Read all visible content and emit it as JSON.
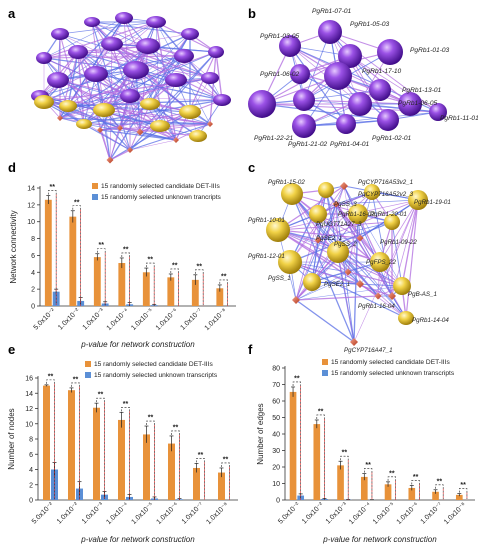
{
  "colors": {
    "orange": "#e8923a",
    "blue": "#5b8fd6",
    "purple": "#7b2fd0",
    "purple_dark": "#4a1298",
    "yellow": "#e6c532",
    "red_diamond": "#d8674c",
    "edge_blue": "#5a6fe6",
    "edge_violet": "#b06ae0",
    "sig_red": "#e02020"
  },
  "panels": {
    "a": {
      "letter": "a"
    },
    "b": {
      "letter": "b",
      "node_labels": [
        "PgRb1-07-01",
        "PgRb1-03-05",
        "PgRb1-05-03",
        "PgRb1-01-03",
        "PgRb1-06-02",
        "PgRb1-17-10",
        "PgRb1-13-01",
        "PgRb1-06-05",
        "PgRb1-11-01",
        "PgRb1-22-21",
        "PgRb1-02-01",
        "PgRb1-21-02",
        "PgRb1-04-01"
      ]
    },
    "c": {
      "letter": "c",
      "node_labels": [
        "PgCYP716A53v2_1",
        "PgRb1-15-02",
        "PgCYP716A52v2_3",
        "PgSS_3",
        "PgRb1-20-01",
        "PgRb1-16-02",
        "PgRb1-19-01",
        "PgRb1-10-01",
        "PgUGT71A27_3",
        "PgSE2_1",
        "PgRb1-09-22",
        "PgRb1-12-01",
        "PgSS_2",
        "PgFPS_22",
        "PgSS_1",
        "PgSE2_1",
        "PgRb1-16-04",
        "PgB-AS_1",
        "PgRb1-14-04",
        "PgCYP716A47_1"
      ]
    },
    "d": {
      "letter": "d"
    },
    "e": {
      "letter": "e"
    },
    "f": {
      "letter": "f"
    }
  },
  "chart_data": [
    {
      "panel": "d",
      "type": "bar",
      "categories": [
        "5.0x10⁻²",
        "1.0x10⁻²",
        "1.0x10⁻³",
        "1.0x10⁻⁴",
        "1.0x10⁻⁵",
        "1.0x10⁻⁶",
        "1.0x10⁻⁷",
        "1.0x10⁻⁸"
      ],
      "series": [
        {
          "name": "15 randomly selected candidate DET-IIIs",
          "values": [
            12.6,
            10.6,
            5.8,
            5.1,
            4.0,
            3.4,
            3.1,
            2.1
          ],
          "errors": [
            0.5,
            0.7,
            0.4,
            0.6,
            0.5,
            0.4,
            0.6,
            0.4
          ]
        },
        {
          "name": "15 randomly selected unknown trancripts",
          "values": [
            1.7,
            0.6,
            0.3,
            0.2,
            0.1,
            0.0,
            0.0,
            0.0
          ],
          "errors": [
            0.3,
            0.4,
            0.2,
            0.2,
            0.1,
            0.0,
            0.0,
            0.0
          ]
        }
      ],
      "sig": [
        "**",
        "**",
        "**",
        "**",
        "**",
        "**",
        "**",
        "**"
      ],
      "xlabel": "p-value for network construction",
      "ylabel": "Network connectivity",
      "ylim": [
        0,
        14
      ],
      "yticks": [
        0,
        2,
        4,
        6,
        8,
        10,
        12,
        14
      ],
      "legend": "top-right"
    },
    {
      "panel": "e",
      "type": "bar",
      "categories": [
        "5.0x10⁻²",
        "1.0x10⁻²",
        "1.0x10⁻³",
        "1.0x10⁻⁴",
        "1.0x10⁻⁵",
        "1.0x10⁻⁶",
        "1.0x10⁻⁷",
        "1.0x10⁻⁸"
      ],
      "series": [
        {
          "name": "15 randomly selected candidate DET-IIIs",
          "values": [
            15.0,
            14.4,
            12.1,
            10.5,
            8.6,
            7.4,
            4.2,
            3.6
          ],
          "errors": [
            0.1,
            0.3,
            0.6,
            1.0,
            1.1,
            1.0,
            0.6,
            0.6
          ]
        },
        {
          "name": "15 randomly selected unknown transcripts",
          "values": [
            4.0,
            1.5,
            0.7,
            0.4,
            0.2,
            0.1,
            0.0,
            0.0
          ],
          "errors": [
            0.9,
            0.9,
            0.4,
            0.3,
            0.2,
            0.1,
            0.0,
            0.0
          ]
        }
      ],
      "sig": [
        "**",
        "**",
        "**",
        "**",
        "**",
        "**",
        "**",
        "**"
      ],
      "xlabel": "p-value for network construction",
      "ylabel": "Number of nodes",
      "ylim": [
        0,
        16
      ],
      "yticks": [
        0,
        2,
        4,
        6,
        8,
        10,
        12,
        14,
        16
      ],
      "legend": "top-right"
    },
    {
      "panel": "f",
      "type": "bar",
      "categories": [
        "5.0x10⁻²",
        "1.0x10⁻²",
        "1.0x10⁻³",
        "1.0x10⁻⁴",
        "1.0x10⁻⁵",
        "1.0x10⁻⁶",
        "1.0x10⁻⁷",
        "1.0x10⁻⁸"
      ],
      "series": [
        {
          "name": "15 randomly selected candidate DET-IIIs",
          "values": [
            65.5,
            46.0,
            21.0,
            14.0,
            9.5,
            7.3,
            5.0,
            3.1
          ],
          "errors": [
            3.0,
            2.5,
            2.5,
            2.0,
            1.5,
            1.5,
            1.2,
            0.8
          ]
        },
        {
          "name": "15 randomly selected unknown  transcripts",
          "values": [
            2.7,
            0.6,
            0.2,
            0.1,
            0.0,
            0.0,
            0.0,
            0.0
          ],
          "errors": [
            1.0,
            0.3,
            0.1,
            0.1,
            0.0,
            0.0,
            0.0,
            0.0
          ]
        }
      ],
      "sig": [
        "**",
        "**",
        "**",
        "**",
        "**",
        "**",
        "**",
        "**"
      ],
      "xlabel": "p-value for network construction",
      "ylabel": "Number of edges",
      "ylim": [
        0,
        80
      ],
      "yticks": [
        0,
        10,
        20,
        30,
        40,
        50,
        60,
        70,
        80
      ],
      "legend": "top-right"
    }
  ]
}
